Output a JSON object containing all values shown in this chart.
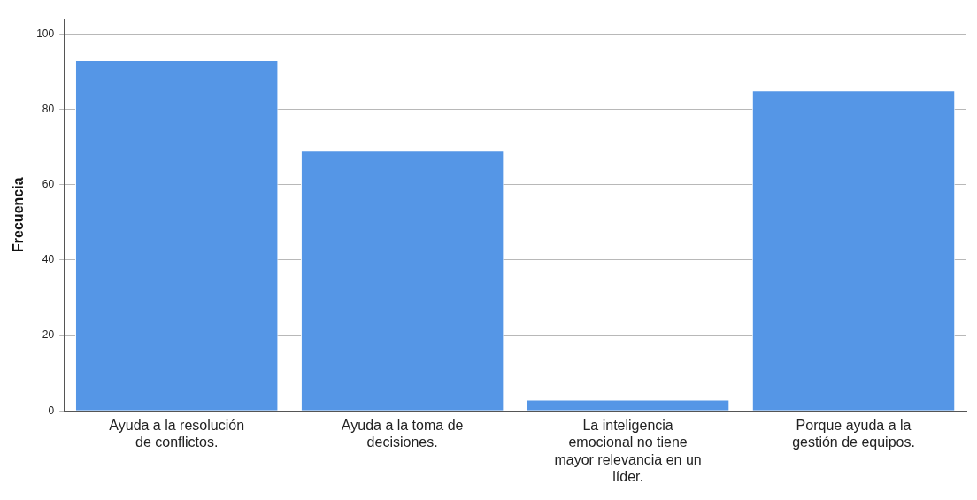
{
  "chart_data": {
    "type": "bar",
    "ylabel": "Frecuencia",
    "categories": [
      "Ayuda a la resolución de conflictos.",
      "Ayuda a la toma de decisiones.",
      "La inteligencia emocional no tiene mayor relevancia en un líder.",
      "Porque ayuda a la gestión de equipos."
    ],
    "values": [
      93,
      69,
      3,
      85
    ],
    "color": "#5596e6",
    "ylim": [
      0,
      104
    ],
    "yticks": [
      0,
      20,
      40,
      60,
      80,
      100
    ],
    "grid": "y",
    "legend": false
  }
}
